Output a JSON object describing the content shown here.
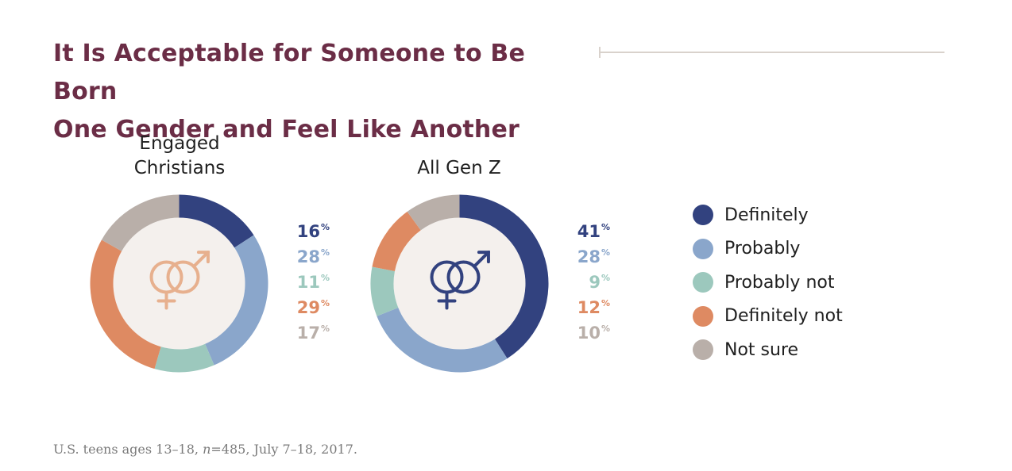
{
  "title": {
    "line1": "It Is Acceptable for Someone to Be Born",
    "line2": "One Gender and Feel Like Another"
  },
  "colors": {
    "title": "#6b2d46",
    "Definitely": "#32427f",
    "Probably": "#8aa6cb",
    "Probably not": "#9cc8bd",
    "Definitely not": "#de8a62",
    "Not sure": "#b9afa9",
    "donut_center": "#f4f0ed",
    "icon_engaged_christians": "#e7b08e",
    "icon_all_gen_z": "#32427f"
  },
  "legend": {
    "position": "right",
    "items": [
      "Definitely",
      "Probably",
      "Probably not",
      "Definitely not",
      "Not sure"
    ]
  },
  "chart_data": [
    {
      "type": "pie",
      "title": "Engaged Christians",
      "categories": [
        "Definitely",
        "Probably",
        "Probably not",
        "Definitely not",
        "Not sure"
      ],
      "values": [
        16,
        28,
        11,
        29,
        17
      ],
      "value_labels": [
        "16",
        "28",
        "11",
        "29",
        "17"
      ],
      "unit": "%",
      "center_icon": "gender-symbols-icon"
    },
    {
      "type": "pie",
      "title": "All Gen Z",
      "categories": [
        "Definitely",
        "Probably",
        "Probably not",
        "Definitely not",
        "Not sure"
      ],
      "values": [
        41,
        28,
        9,
        12,
        10
      ],
      "value_labels": [
        "41",
        "28",
        "9",
        "12",
        "10"
      ],
      "unit": "%",
      "center_icon": "gender-symbols-icon"
    }
  ],
  "labels": {
    "engaged_christians_line1": "Engaged",
    "engaged_christians_line2": "Christians",
    "all_gen_z": "All Gen Z"
  },
  "footnote": {
    "before": "U.S. teens ages 13–18, ",
    "italic": "n",
    "after": "=485, July 7–18, 2017."
  }
}
